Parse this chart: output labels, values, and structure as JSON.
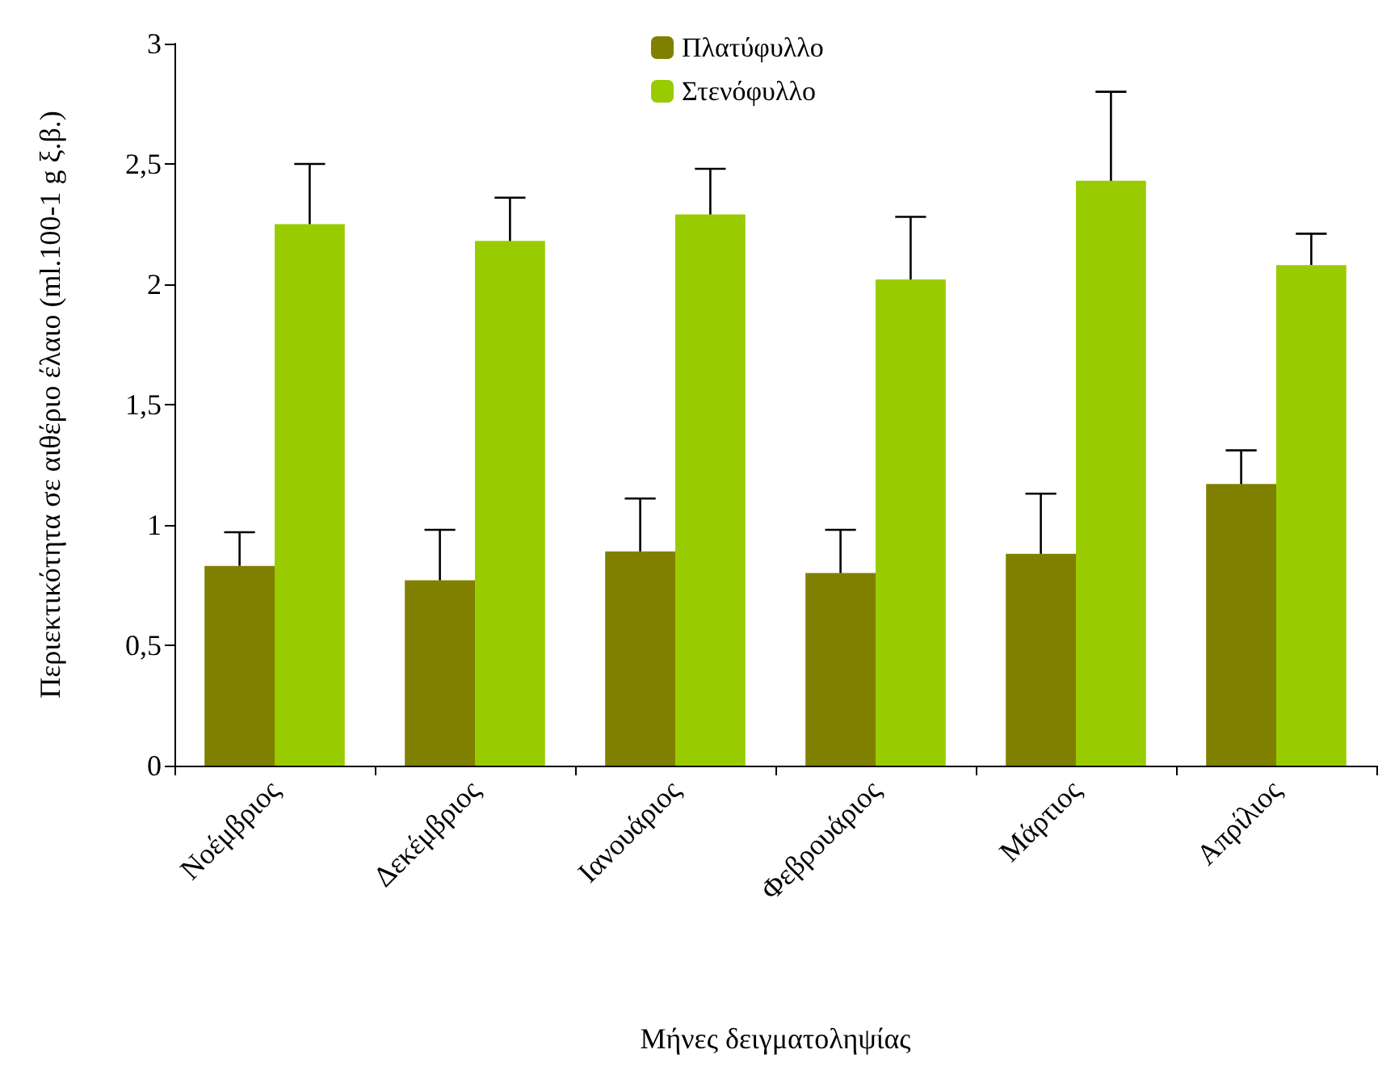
{
  "chart_data": {
    "type": "bar",
    "xlabel": "Μήνες δειγματοληψίας",
    "ylabel": "Περιεκτικότητα σε αιθέριο έλαιο (ml.100-1 g ξ.β.)",
    "categories": [
      "Νοέμβριος",
      "Δεκέμβριος",
      "Ιανουάριος",
      "Φεβρουάριος",
      "Μάρτιος",
      "Απρίλιος"
    ],
    "series": [
      {
        "name": "Πλατύφυλλο",
        "color": "#808000",
        "values": [
          0.83,
          0.77,
          0.89,
          0.8,
          0.88,
          1.17
        ],
        "errors": [
          [
            0.83,
            0.97
          ],
          [
            0.77,
            0.98
          ],
          [
            0.89,
            1.11
          ],
          [
            0.8,
            0.98
          ],
          [
            0.88,
            1.13
          ],
          [
            1.17,
            1.31
          ]
        ]
      },
      {
        "name": "Στενόφυλλο",
        "color": "#99cc00",
        "values": [
          2.25,
          2.18,
          2.29,
          2.02,
          2.43,
          2.08
        ],
        "errors": [
          [
            2.25,
            2.5
          ],
          [
            2.18,
            2.36
          ],
          [
            2.29,
            2.48
          ],
          [
            2.02,
            2.28
          ],
          [
            2.43,
            2.8
          ],
          [
            2.08,
            2.21
          ]
        ]
      }
    ],
    "ylim": [
      0,
      3
    ],
    "yticks": [
      0,
      {
        "value": 0.5,
        "label": "0,5"
      },
      1,
      {
        "value": 1.5,
        "label": "1,5"
      },
      2,
      {
        "value": 2.5,
        "label": "2,5"
      },
      3
    ],
    "grid": false,
    "legend": "top"
  }
}
